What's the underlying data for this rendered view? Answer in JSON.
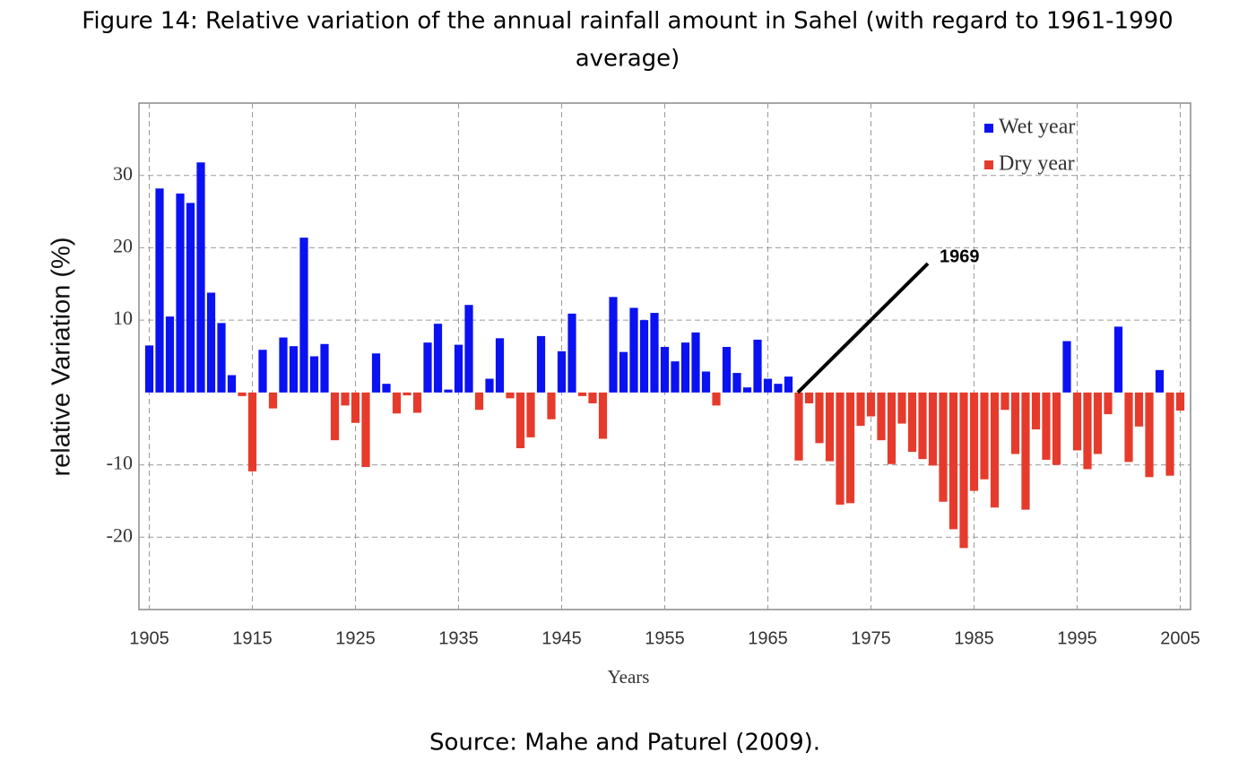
{
  "chart_data": {
    "type": "bar",
    "title": "Figure 14: Relative variation of the annual rainfall amount in Sahel (with regard to 1961-1990",
    "subtitle": "average)",
    "y_label": "relative Variation (%)",
    "x_label": "Years",
    "source": "Source: Mahe and Paturel (2009).",
    "annotation": "1969",
    "legend": "upper right",
    "grid": true,
    "xlim": [
      1904,
      2006
    ],
    "ylim": [
      -30,
      40
    ],
    "xticks": [
      1905,
      1915,
      1925,
      1935,
      1945,
      1955,
      1965,
      1975,
      1985,
      1995,
      2005
    ],
    "yticks": [
      -20,
      -10,
      10,
      20,
      30
    ],
    "x": [
      1905,
      1906,
      1907,
      1908,
      1909,
      1910,
      1911,
      1912,
      1913,
      1914,
      1915,
      1916,
      1917,
      1918,
      1919,
      1920,
      1921,
      1922,
      1923,
      1924,
      1925,
      1926,
      1927,
      1928,
      1929,
      1930,
      1931,
      1932,
      1933,
      1934,
      1935,
      1936,
      1937,
      1938,
      1939,
      1940,
      1941,
      1942,
      1943,
      1944,
      1945,
      1946,
      1947,
      1948,
      1949,
      1950,
      1951,
      1952,
      1953,
      1954,
      1955,
      1956,
      1957,
      1958,
      1959,
      1960,
      1961,
      1962,
      1963,
      1964,
      1965,
      1966,
      1967,
      1968,
      1969,
      1970,
      1971,
      1972,
      1973,
      1974,
      1975,
      1976,
      1977,
      1978,
      1979,
      1980,
      1981,
      1982,
      1983,
      1984,
      1985,
      1986,
      1987,
      1988,
      1989,
      1990,
      1991,
      1992,
      1993,
      1994,
      1995,
      1996,
      1997,
      1998,
      1999,
      2000,
      2001,
      2002,
      2003,
      2004,
      2005
    ],
    "series": [
      {
        "name": "Wet year",
        "color": "#0a12f2",
        "values": [
          6.5,
          28.2,
          10.5,
          27.5,
          26.2,
          31.8,
          13.8,
          9.6,
          2.4,
          null,
          null,
          5.9,
          null,
          7.6,
          6.4,
          21.4,
          5.0,
          6.7,
          null,
          null,
          null,
          null,
          5.4,
          1.2,
          null,
          null,
          null,
          6.9,
          9.5,
          0.4,
          6.6,
          12.1,
          null,
          1.9,
          7.5,
          null,
          null,
          null,
          7.8,
          null,
          5.7,
          10.9,
          null,
          null,
          null,
          13.2,
          5.6,
          11.7,
          10.0,
          11.0,
          6.3,
          4.3,
          6.9,
          8.3,
          2.9,
          null,
          6.3,
          2.7,
          0.7,
          7.3,
          1.9,
          1.2,
          2.2,
          null,
          null,
          null,
          null,
          null,
          null,
          null,
          null,
          null,
          null,
          null,
          null,
          null,
          null,
          null,
          null,
          null,
          null,
          null,
          null,
          null,
          null,
          null,
          null,
          null,
          null,
          7.1,
          null,
          null,
          null,
          null,
          9.1,
          null,
          null,
          null,
          3.1,
          null,
          null
        ]
      },
      {
        "name": "Dry year",
        "color": "#e63b2c",
        "values": [
          null,
          null,
          null,
          null,
          null,
          null,
          null,
          null,
          null,
          -0.5,
          -10.9,
          null,
          -2.2,
          null,
          null,
          null,
          null,
          null,
          -6.6,
          -1.8,
          -4.2,
          -10.3,
          null,
          null,
          -2.9,
          -0.4,
          -2.8,
          null,
          null,
          null,
          null,
          null,
          -2.4,
          null,
          null,
          -0.8,
          -7.7,
          -6.2,
          null,
          -3.7,
          null,
          null,
          -0.5,
          -1.5,
          -6.4,
          null,
          null,
          null,
          null,
          null,
          null,
          null,
          null,
          null,
          null,
          -1.8,
          null,
          null,
          null,
          null,
          null,
          null,
          null,
          -9.4,
          -1.5,
          -7.0,
          -9.5,
          -15.5,
          -15.3,
          -4.6,
          -3.3,
          -6.6,
          -9.9,
          -4.3,
          -8.2,
          -9.2,
          -10.1,
          -15.1,
          -18.9,
          -21.5,
          -13.6,
          -12.0,
          -15.9,
          -2.4,
          -8.5,
          -16.2,
          -5.1,
          -9.3,
          -10.0,
          null,
          -8.0,
          -10.6,
          -8.5,
          -3.0,
          null,
          -9.6,
          -4.7,
          -11.7,
          null,
          -11.5,
          -2.5
        ]
      }
    ]
  }
}
